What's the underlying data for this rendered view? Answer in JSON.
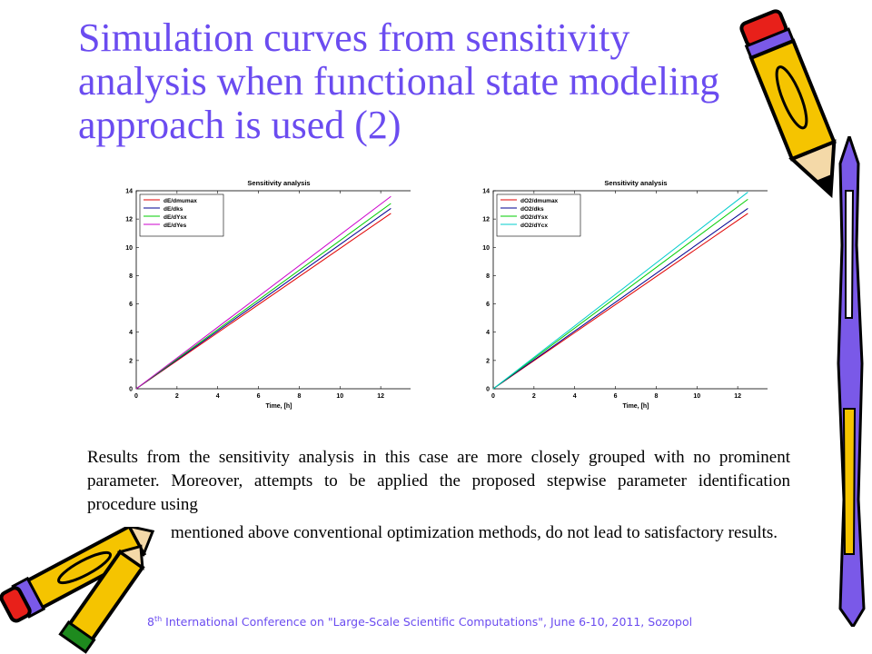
{
  "title": "Simulation curves from sensitivity analysis when functional state modeling approach is used (2)",
  "body": {
    "first_part": "Results from the sensitivity analysis in this case are more closely grouped with no prominent parameter. Moreover, attempts to be applied the proposed stepwise parameter identification procedure using",
    "second_part": "mentioned above conventional optimization methods, do not lead to satisfactory results."
  },
  "footer": {
    "ordinal": "8",
    "suffix": "th",
    "text": " International Conference on \"Large-Scale Scientific Computations\", June 6-10, 2011, Sozopol"
  },
  "colors": {
    "title": "#6b4cf0",
    "footer": "#6b4cf0"
  },
  "decorations": [
    "pencil-icon",
    "pencil-icon",
    "pencil-icon"
  ],
  "chart_data": [
    {
      "type": "line",
      "title": "Sensitivity analysis",
      "xlabel": "Time, [h]",
      "ylabel": "",
      "xlim": [
        0,
        14
      ],
      "ylim": [
        0,
        14
      ],
      "xticks": [
        0,
        2,
        4,
        6,
        8,
        10,
        12,
        14
      ],
      "yticks": [
        0,
        2,
        4,
        6,
        8,
        10,
        12,
        14
      ],
      "legend_position": "top-left",
      "series": [
        {
          "name": "dE/dmumax",
          "color": "#e00000",
          "x": [
            0,
            12.5
          ],
          "y": [
            0,
            12.4
          ]
        },
        {
          "name": "dE/dks",
          "color": "#000090",
          "x": [
            0,
            12.5
          ],
          "y": [
            0,
            12.75
          ]
        },
        {
          "name": "dE/dYsx",
          "color": "#00cc00",
          "x": [
            0,
            12.5
          ],
          "y": [
            0,
            13.1
          ]
        },
        {
          "name": "dE/dYes",
          "color": "#cc00cc",
          "x": [
            0,
            12.5
          ],
          "y": [
            0,
            13.6
          ]
        }
      ]
    },
    {
      "type": "line",
      "title": "Sensitivity analysis",
      "xlabel": "Time, [h]",
      "ylabel": "",
      "xlim": [
        0,
        14
      ],
      "ylim": [
        0,
        14
      ],
      "xticks": [
        0,
        2,
        4,
        6,
        8,
        10,
        12,
        14
      ],
      "yticks": [
        0,
        2,
        4,
        6,
        8,
        10,
        12,
        14
      ],
      "legend_position": "top-left",
      "series": [
        {
          "name": "dO2/dmumax",
          "color": "#e00000",
          "x": [
            0,
            12.5
          ],
          "y": [
            0,
            12.4
          ]
        },
        {
          "name": "dO2/dks",
          "color": "#000090",
          "x": [
            0,
            12.5
          ],
          "y": [
            0,
            12.75
          ]
        },
        {
          "name": "dO2/dYsx",
          "color": "#00cc00",
          "x": [
            0,
            12.5
          ],
          "y": [
            0,
            13.4
          ]
        },
        {
          "name": "dO2/dYcx",
          "color": "#00cccc",
          "x": [
            0,
            12.5
          ],
          "y": [
            0,
            13.9
          ]
        }
      ]
    }
  ]
}
